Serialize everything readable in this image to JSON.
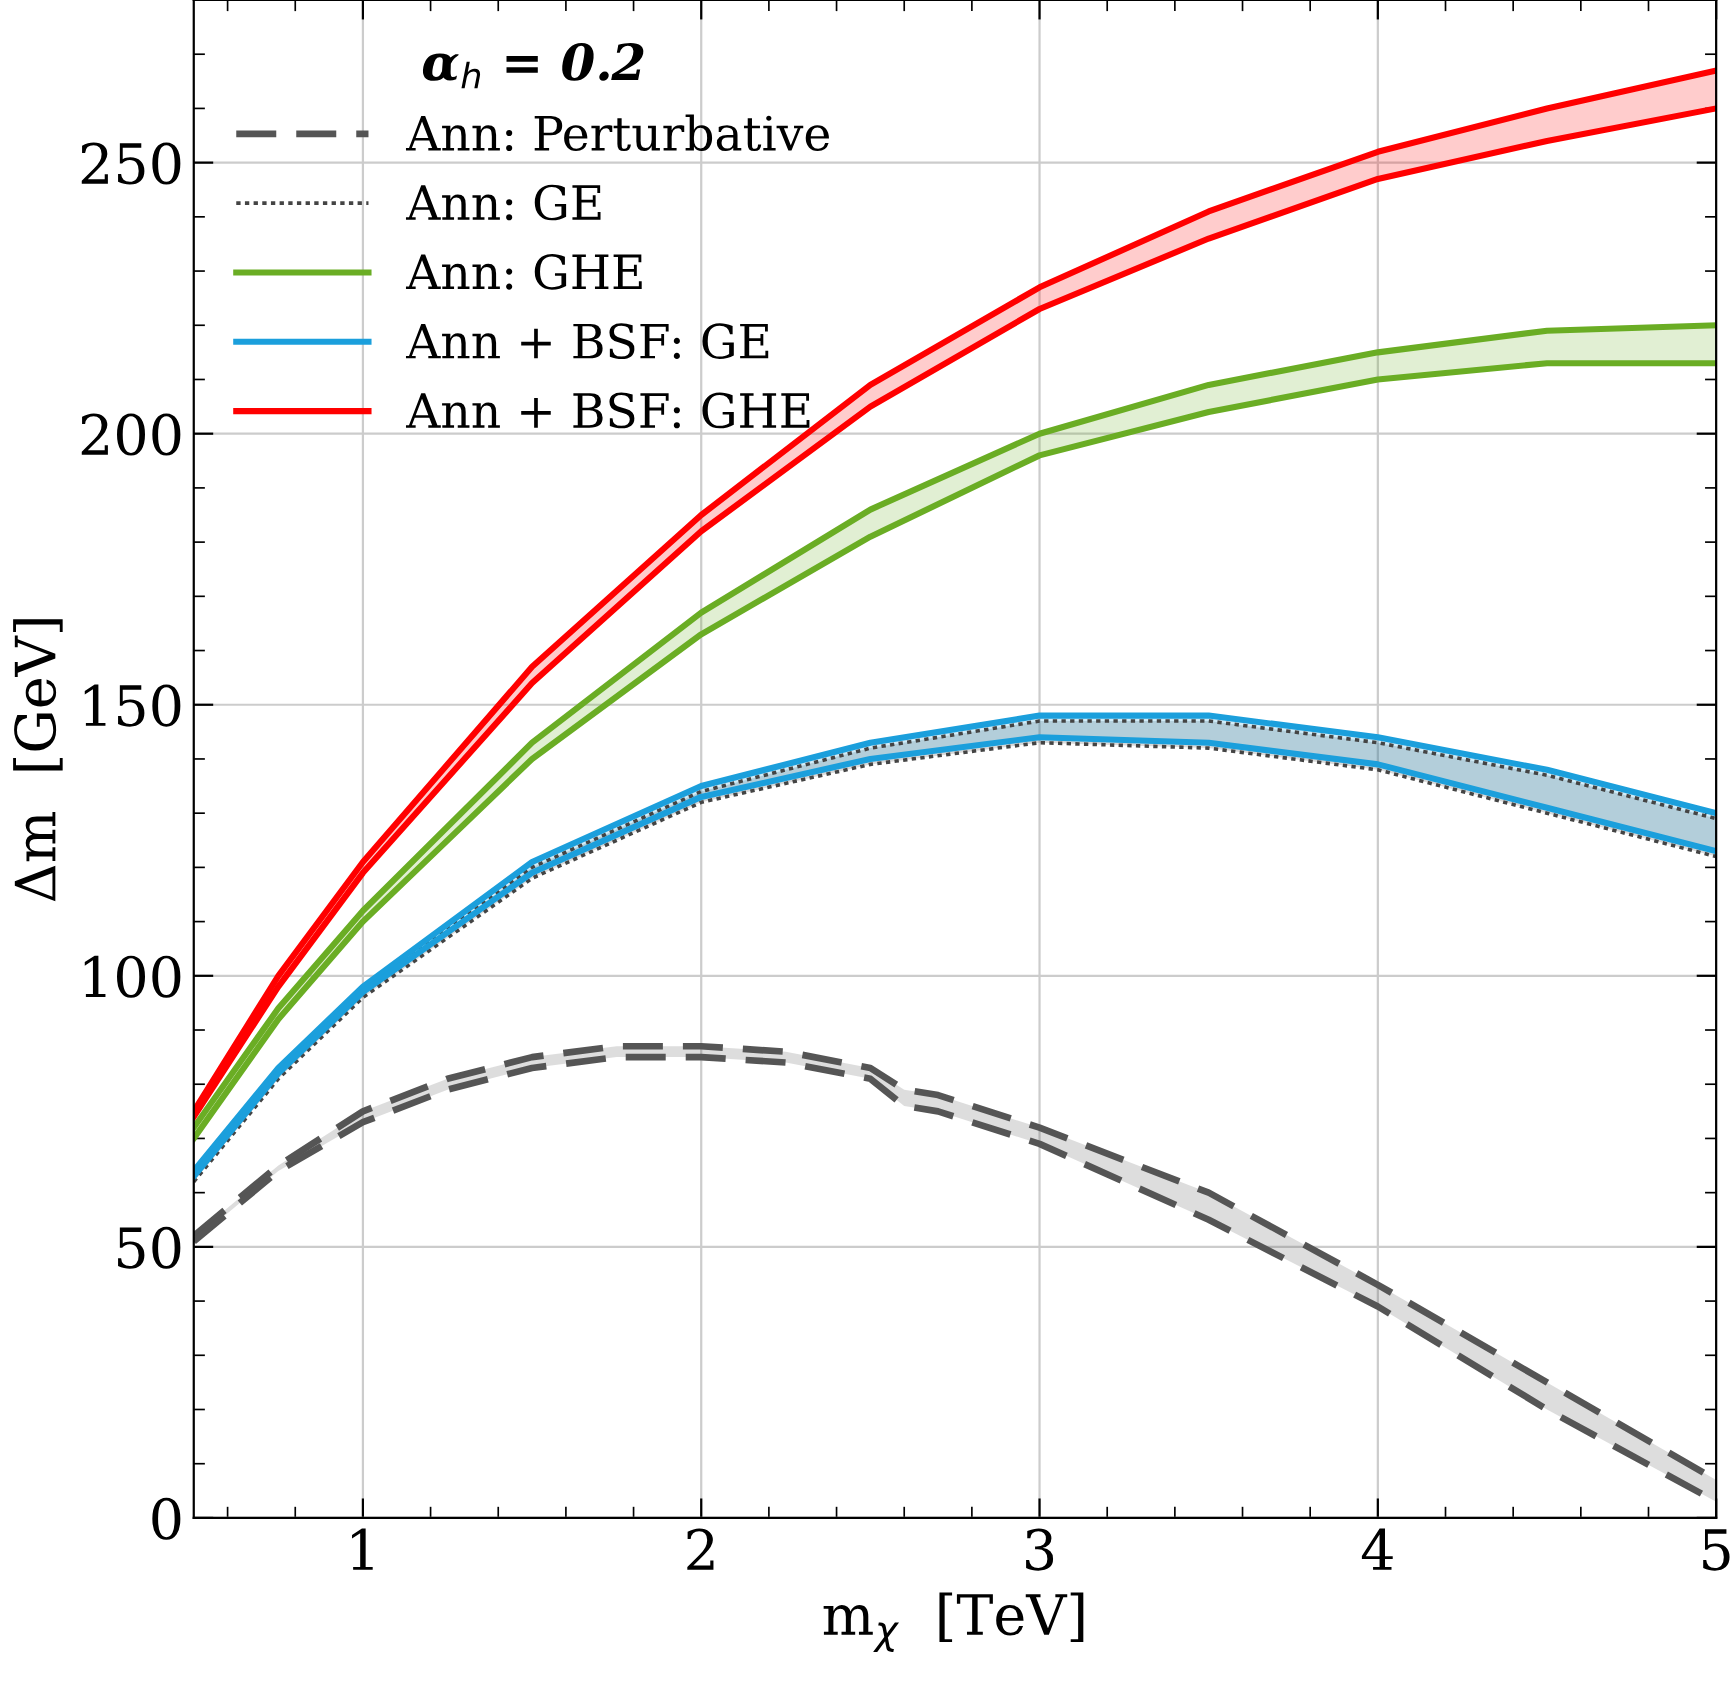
{
  "chart_data": {
    "type": "line",
    "xlabel": "m$_{χ}$  [TeV]",
    "ylabel": "Δm  [GeV]",
    "legend_title": "α$_{h}$ = 0.2",
    "legend": "top left",
    "grid": true,
    "xlim": [
      0.5,
      5
    ],
    "ylim": [
      0,
      280
    ],
    "xticks": [
      {
        "value": 0.6,
        "label": null
      },
      {
        "value": 0.8,
        "label": null
      },
      1,
      {
        "value": 1.2,
        "label": null
      },
      {
        "value": 1.4,
        "label": null
      },
      {
        "value": 1.6,
        "label": null
      },
      {
        "value": 1.8,
        "label": null
      },
      2,
      {
        "value": 2.2,
        "label": null
      },
      {
        "value": 2.4,
        "label": null
      },
      {
        "value": 2.6,
        "label": null
      },
      {
        "value": 2.8,
        "label": null
      },
      3,
      {
        "value": 3.2,
        "label": null
      },
      {
        "value": 3.4,
        "label": null
      },
      {
        "value": 3.6,
        "label": null
      },
      {
        "value": 3.8,
        "label": null
      },
      4,
      {
        "value": 4.2,
        "label": null
      },
      {
        "value": 4.4,
        "label": null
      },
      {
        "value": 4.6,
        "label": null
      },
      {
        "value": 4.8,
        "label": null
      },
      5
    ],
    "yticks": [
      0,
      {
        "value": 10,
        "label": null
      },
      {
        "value": 20,
        "label": null
      },
      {
        "value": 30,
        "label": null
      },
      {
        "value": 40,
        "label": null
      },
      50,
      {
        "value": 60,
        "label": null
      },
      {
        "value": 70,
        "label": null
      },
      {
        "value": 80,
        "label": null
      },
      {
        "value": 90,
        "label": null
      },
      100,
      {
        "value": 110,
        "label": null
      },
      {
        "value": 120,
        "label": null
      },
      {
        "value": 130,
        "label": null
      },
      {
        "value": 140,
        "label": null
      },
      150,
      {
        "value": 160,
        "label": null
      },
      {
        "value": 170,
        "label": null
      },
      {
        "value": 180,
        "label": null
      },
      {
        "value": 190,
        "label": null
      },
      200,
      {
        "value": 210,
        "label": null
      },
      {
        "value": 220,
        "label": null
      },
      {
        "value": 230,
        "label": null
      },
      {
        "value": 240,
        "label": null
      },
      250,
      {
        "value": 260,
        "label": null
      },
      {
        "value": 270,
        "label": null
      }
    ],
    "series": [
      {
        "name": "Ann: Perturbative",
        "color": "#555555",
        "line_style": "dashed",
        "x": [
          0.5,
          0.75,
          1,
          1.25,
          1.5,
          1.75,
          2,
          2.25,
          2.5,
          2.6,
          2.7,
          3,
          3.5,
          4,
          4.5,
          5
        ],
        "values": [
          52,
          65,
          75,
          81,
          85,
          87,
          87,
          86,
          83,
          79,
          78,
          72,
          60,
          43,
          25,
          7
        ],
        "upper": [
          52,
          65,
          75,
          81,
          85,
          87,
          87,
          86,
          83,
          79,
          78,
          72,
          60,
          43,
          25,
          7
        ],
        "lower": [
          51,
          64,
          73,
          79,
          83,
          85,
          85,
          84,
          81,
          76,
          75,
          69,
          55,
          39,
          20,
          3
        ]
      },
      {
        "color": "#555555",
        "line_style": "dashed",
        "x": [
          0.5,
          0.75,
          1,
          1.25,
          1.5,
          1.75,
          2,
          2.25,
          2.5,
          2.6,
          2.7,
          3,
          3.5,
          4,
          4.5,
          5
        ],
        "values": [
          51,
          64,
          73,
          79,
          83,
          85,
          85,
          84,
          81,
          76,
          75,
          69,
          55,
          39,
          20,
          3
        ]
      },
      {
        "name": "Ann: GE",
        "color": "#444444",
        "line_style": "dotted",
        "x": [
          0.5,
          0.75,
          1,
          1.5,
          2,
          2.5,
          3,
          3.5,
          4,
          4.5,
          5
        ],
        "values": [
          63,
          82,
          97,
          120,
          134,
          142,
          147,
          147,
          143,
          137,
          129
        ],
        "upper": [
          63,
          82,
          97,
          120,
          134,
          142,
          147,
          147,
          143,
          137,
          129
        ],
        "lower": [
          62,
          81,
          96,
          118,
          132,
          139,
          143,
          142,
          138,
          130,
          122
        ]
      },
      {
        "color": "#444444",
        "line_style": "dotted",
        "x": [
          0.5,
          0.75,
          1,
          1.5,
          2,
          2.5,
          3,
          3.5,
          4,
          4.5,
          5
        ],
        "values": [
          62,
          81,
          96,
          118,
          132,
          139,
          143,
          142,
          138,
          130,
          122
        ]
      },
      {
        "name": "Ann: GHE",
        "color": "#6aad24",
        "line_style": "solid",
        "x": [
          0.5,
          0.75,
          1,
          1.5,
          2,
          2.5,
          3,
          3.5,
          4,
          4.5,
          5
        ],
        "values": [
          72,
          94,
          112,
          143,
          167,
          186,
          200,
          209,
          215,
          219,
          220
        ],
        "upper": [
          72,
          94,
          112,
          143,
          167,
          186,
          200,
          209,
          215,
          219,
          220
        ],
        "lower": [
          70,
          92,
          110,
          140,
          163,
          181,
          196,
          204,
          210,
          213,
          213
        ]
      },
      {
        "color": "#6aad24",
        "line_style": "solid",
        "x": [
          0.5,
          0.75,
          1,
          1.5,
          2,
          2.5,
          3,
          3.5,
          4,
          4.5,
          5
        ],
        "values": [
          70,
          92,
          110,
          140,
          163,
          181,
          196,
          204,
          210,
          213,
          213
        ]
      },
      {
        "name": "Ann + BSF: GE",
        "color": "#1b9fdc",
        "line_style": "solid",
        "x": [
          0.5,
          0.75,
          1,
          1.5,
          2,
          2.5,
          3,
          3.5,
          4,
          4.5,
          5
        ],
        "values": [
          64,
          83,
          98,
          121,
          135,
          143,
          148,
          148,
          144,
          138,
          130
        ],
        "upper": [
          64,
          83,
          98,
          121,
          135,
          143,
          148,
          148,
          144,
          138,
          130
        ],
        "lower": [
          63,
          82,
          97,
          119,
          133,
          140,
          144,
          143,
          139,
          131,
          123
        ]
      },
      {
        "color": "#1b9fdc",
        "line_style": "solid",
        "x": [
          0.5,
          0.75,
          1,
          1.5,
          2,
          2.5,
          3,
          3.5,
          4,
          4.5,
          5
        ],
        "values": [
          63,
          82,
          97,
          119,
          133,
          140,
          144,
          143,
          139,
          131,
          123
        ]
      },
      {
        "name": "Ann + BSF: GHE",
        "color": "#ff0000",
        "line_style": "solid",
        "x": [
          0.5,
          0.75,
          1,
          1.5,
          2,
          2.5,
          3,
          3.5,
          4,
          4.5,
          5
        ],
        "values": [
          75,
          100,
          121,
          157,
          185,
          209,
          227,
          241,
          252,
          260,
          267
        ],
        "upper": [
          75,
          100,
          121,
          157,
          185,
          209,
          227,
          241,
          252,
          260,
          267
        ],
        "lower": [
          74,
          98,
          119,
          154,
          182,
          205,
          223,
          236,
          247,
          254,
          260
        ]
      },
      {
        "color": "#ff0000",
        "line_style": "solid",
        "x": [
          0.5,
          0.75,
          1,
          1.5,
          2,
          2.5,
          3,
          3.5,
          4,
          4.5,
          5
        ],
        "values": [
          74,
          98,
          119,
          154,
          182,
          205,
          223,
          236,
          247,
          254,
          260
        ]
      }
    ]
  }
}
